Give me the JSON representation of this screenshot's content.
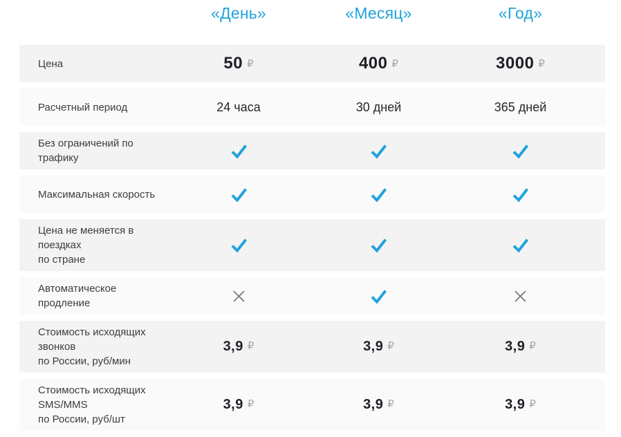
{
  "palette": {
    "accent_blue": "#21a3dc",
    "row_odd_bg": "#f3f3f3",
    "row_even_bg": "#fafafa",
    "cross_gray": "#7a7a7a",
    "currency_gray": "#a6a6a6",
    "label_gray": "#3d3d3d",
    "value_dark": "#262626",
    "number_dark": "#1d2026"
  },
  "header": {
    "columns": [
      "«День»",
      "«Месяц»",
      "«Год»"
    ]
  },
  "currency_symbol": "₽",
  "icons": {
    "check": "check-icon",
    "cross": "cross-icon"
  },
  "rows": [
    {
      "label": "Цена",
      "type": "price",
      "big": true,
      "values": [
        "50",
        "400",
        "3000"
      ]
    },
    {
      "label": "Расчетный период",
      "type": "text",
      "values": [
        "24 часа",
        "30 дней",
        "365 дней"
      ]
    },
    {
      "label": "Без ограничений по трафику",
      "type": "bool",
      "values": [
        true,
        true,
        true
      ]
    },
    {
      "label": "Максимальная скорость",
      "type": "bool",
      "values": [
        true,
        true,
        true
      ]
    },
    {
      "label": "Цена не меняется в поездках\nпо стране",
      "type": "bool",
      "values": [
        true,
        true,
        true
      ]
    },
    {
      "label": "Автоматическое продление",
      "type": "bool",
      "values": [
        false,
        true,
        false
      ]
    },
    {
      "label": "Стоимость исходящих звонков\nпо России, руб/мин",
      "type": "price",
      "big": false,
      "values": [
        "3,9",
        "3,9",
        "3,9"
      ]
    },
    {
      "label": "Стоимость исходящих SMS/MMS\nпо России, руб/шт",
      "type": "price",
      "big": false,
      "values": [
        "3,9",
        "3,9",
        "3,9"
      ]
    }
  ]
}
